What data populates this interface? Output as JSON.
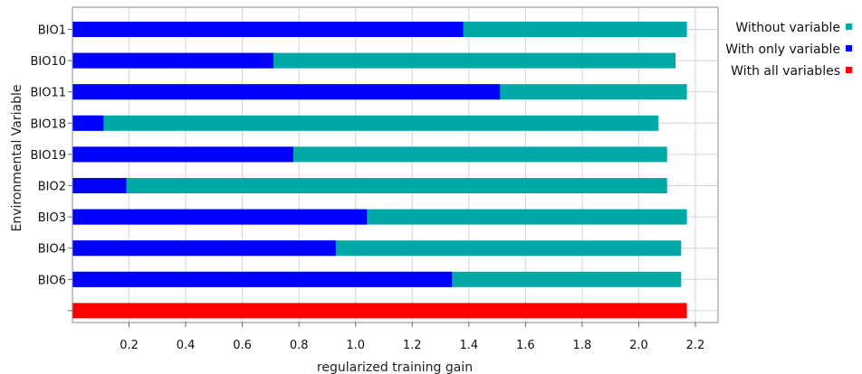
{
  "chart_data": {
    "type": "bar",
    "orientation": "horizontal",
    "xlabel": "regularized training gain",
    "ylabel": "Environmental Variable",
    "xlim": [
      0,
      2.28
    ],
    "xticks": [
      0.2,
      0.4,
      0.6,
      0.8,
      1.0,
      1.2,
      1.4,
      1.6,
      1.8,
      2.0,
      2.2
    ],
    "xtick_labels": [
      "0.2",
      "0.4",
      "0.6",
      "0.8",
      "1.0",
      "1.2",
      "1.4",
      "1.6",
      "1.8",
      "2.0",
      "2.2"
    ],
    "grid": true,
    "legend_position": "right",
    "categories": [
      "BIO1",
      "BIO10",
      "BIO11",
      "BIO18",
      "BIO19",
      "BIO2",
      "BIO3",
      "BIO4",
      "BIO6"
    ],
    "series": [
      {
        "name": "Without variable",
        "color": "#00a8a8",
        "values": [
          2.17,
          2.13,
          2.17,
          2.07,
          2.1,
          2.1,
          2.17,
          2.15,
          2.15
        ]
      },
      {
        "name": "With only variable",
        "color": "#0000ff",
        "values": [
          1.38,
          0.71,
          1.51,
          0.11,
          0.78,
          0.19,
          1.04,
          0.93,
          1.34
        ]
      },
      {
        "name": "With all variables",
        "color": "#ff0000",
        "value": 2.17
      }
    ]
  }
}
